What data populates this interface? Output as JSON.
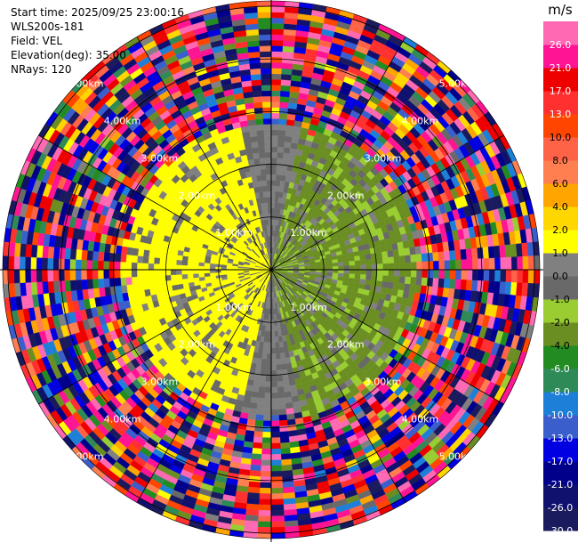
{
  "info": {
    "start_time": "Start time: 2025/09/25 23:00:16",
    "station": "WLS200s-181",
    "field": "Field: VEL",
    "elevation": "Elevation(deg): 35.00",
    "nrays": "NRays: 120"
  },
  "chart_data": {
    "type": "heatmap",
    "projection": "polar-ppi",
    "field": "VEL",
    "units": "m/s",
    "n_rays": 120,
    "range_rings_km": [
      1,
      2,
      3,
      4,
      5
    ],
    "range_ring_labels": [
      "1.00km",
      "2.00km",
      "3.00km",
      "4.00km",
      "5.00km"
    ],
    "grid_lines": "every 30 deg",
    "colorbar": {
      "label": "m/s",
      "position": "right",
      "ticks": [
        "-30.0",
        "-26.0",
        "-21.0",
        "-17.0",
        "-13.0",
        "-10.0",
        "-8.0",
        "-6.0",
        "-4.0",
        "-2.0",
        "-1.0",
        "0.0",
        "1.0",
        "2.0",
        "4.0",
        "6.0",
        "8.0",
        "10.0",
        "13.0",
        "17.0",
        "21.0",
        "26.0"
      ],
      "bins": [
        {
          "from": -30,
          "to": -26,
          "color": "#1a1a5e"
        },
        {
          "from": -26,
          "to": -21,
          "color": "#10106e"
        },
        {
          "from": -21,
          "to": -17,
          "color": "#00008b"
        },
        {
          "from": -17,
          "to": -13,
          "color": "#0000e0"
        },
        {
          "from": -13,
          "to": -10,
          "color": "#3a5fcd"
        },
        {
          "from": -10,
          "to": -8,
          "color": "#1e7fd8"
        },
        {
          "from": -8,
          "to": -6,
          "color": "#2e8b57"
        },
        {
          "from": -6,
          "to": -4,
          "color": "#228b22"
        },
        {
          "from": -4,
          "to": -2,
          "color": "#6b8e23"
        },
        {
          "from": -2,
          "to": -1,
          "color": "#9acd32"
        },
        {
          "from": -1,
          "to": 0,
          "color": "#696969"
        },
        {
          "from": 0,
          "to": 1,
          "color": "#808080"
        },
        {
          "from": 1,
          "to": 2,
          "color": "#ffff00"
        },
        {
          "from": 2,
          "to": 4,
          "color": "#ffd700"
        },
        {
          "from": 4,
          "to": 6,
          "color": "#ffa500"
        },
        {
          "from": 6,
          "to": 8,
          "color": "#ff7f50"
        },
        {
          "from": 8,
          "to": 10,
          "color": "#ff6347"
        },
        {
          "from": 10,
          "to": 13,
          "color": "#ff4500"
        },
        {
          "from": 13,
          "to": 17,
          "color": "#ff3030"
        },
        {
          "from": 17,
          "to": 21,
          "color": "#ee0000"
        },
        {
          "from": 21,
          "to": 26,
          "color": "#ff1493"
        },
        {
          "from": 26,
          "to": 30,
          "color": "#ff69b4"
        }
      ]
    },
    "valid_data_range_km": [
      0,
      2.9
    ],
    "description_of_pattern": "near-range dipole: positive (yellow) on west side, negative (olive/green) on east; noise beyond ~2.9km"
  }
}
